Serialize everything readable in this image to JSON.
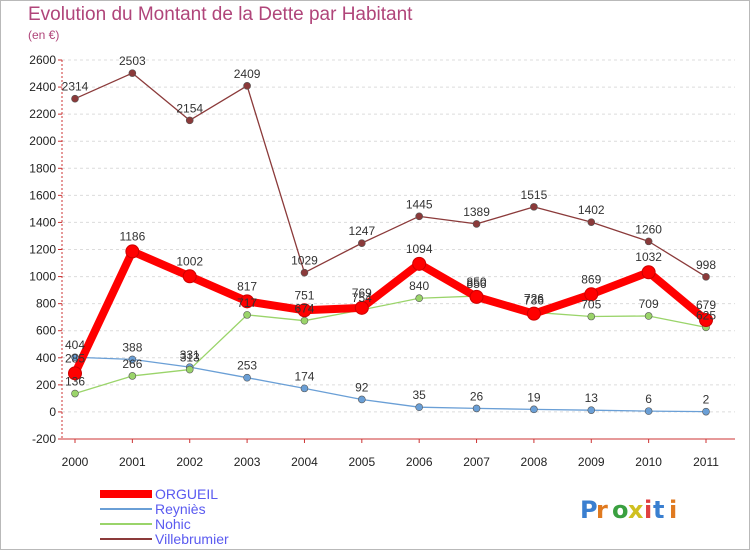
{
  "chart_data": {
    "type": "line",
    "title": "Evolution du Montant de la Dette par Habitant",
    "subtitle": "(en €)",
    "categories": [
      "2000",
      "2001",
      "2002",
      "2003",
      "2004",
      "2005",
      "2006",
      "2007",
      "2008",
      "2009",
      "2010",
      "2011"
    ],
    "ylim": [
      -200,
      2600
    ],
    "yticks": [
      -200,
      0,
      200,
      400,
      600,
      800,
      1000,
      1200,
      1400,
      1600,
      1800,
      2000,
      2200,
      2400,
      2600
    ],
    "grid": "horizontal dashed",
    "legend_position": "bottom-left",
    "series": [
      {
        "name": "ORGUEIL",
        "color": "#ff0000",
        "values": [
          285,
          1186,
          1002,
          817,
          751,
          769,
          1094,
          850,
          726,
          869,
          1032,
          679
        ]
      },
      {
        "name": "Reyniès",
        "color": "#6a9fd6",
        "values": [
          404,
          388,
          331,
          253,
          174,
          92,
          35,
          26,
          19,
          13,
          6,
          2
        ]
      },
      {
        "name": "Nohic",
        "color": "#9ad46a",
        "values": [
          136,
          266,
          313,
          717,
          674,
          754,
          840,
          856,
          736,
          705,
          709,
          625
        ]
      },
      {
        "name": "Villebrumier",
        "color": "#8b3a3a",
        "values": [
          2314,
          2503,
          2154,
          2409,
          1029,
          1247,
          1445,
          1389,
          1515,
          1402,
          1260,
          998
        ]
      }
    ]
  },
  "logo": "Proxiti"
}
